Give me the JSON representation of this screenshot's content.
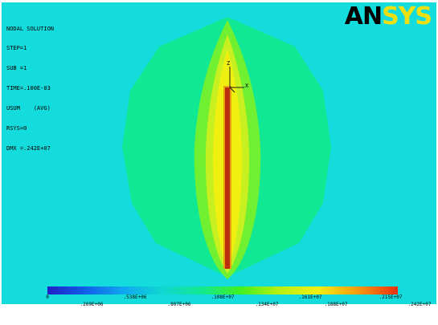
{
  "window": {
    "solution_title": "NODAL SOLUTION",
    "logo": {
      "part1": "AN",
      "part2": "SYS"
    }
  },
  "info_lines": [
    "STEP=1",
    "SUB =1",
    "TIME=.100E-03",
    "USUM    (AVG)",
    "RSYS=0",
    "DMX =.242E+07"
  ],
  "triad": {
    "z_label": "Z",
    "x_label": "X"
  },
  "legend": {
    "labels_top": [
      "0",
      ".538E+06",
      ".108E+07",
      ".161E+07",
      ".215E+07"
    ],
    "labels_bottom": [
      ".269E+06",
      ".807E+06",
      ".134E+07",
      ".188E+07",
      ".242E+07"
    ]
  },
  "colors": {
    "background": "#14dcdc",
    "contour_green": "#10e894",
    "contour_lime": "#70f030",
    "contour_yellowgreen": "#c8f020",
    "contour_yellow": "#f0f010",
    "element_core": "#b83010"
  }
}
